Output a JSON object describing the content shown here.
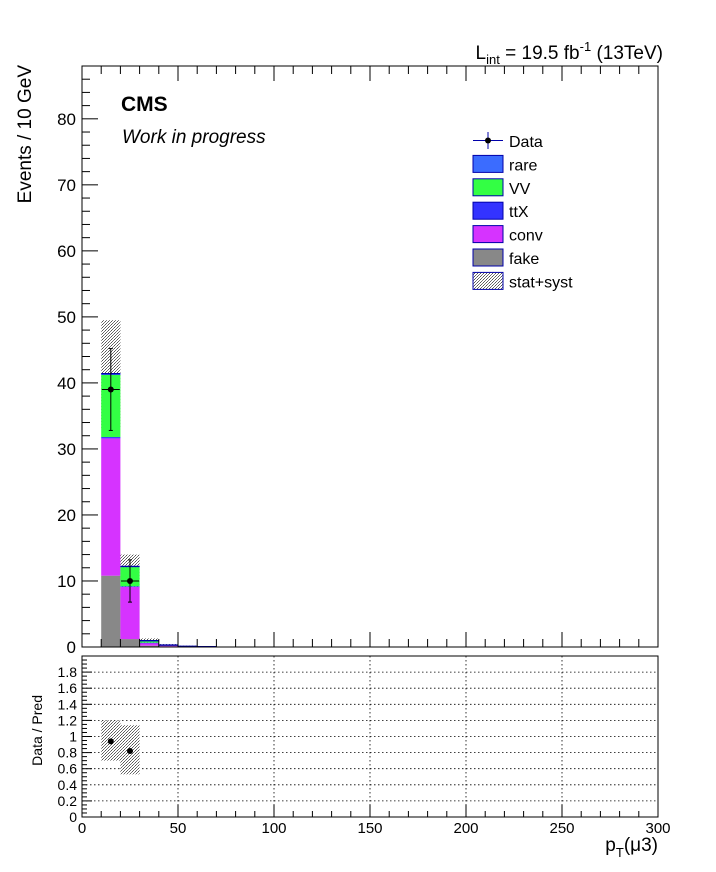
{
  "colors": {
    "rare": "#3b6cff",
    "VV": "#33ff44",
    "ttX": "#3333ff",
    "conv": "#d633ff",
    "fake": "#888888",
    "band": "#b0b0b0",
    "data": "#000000",
    "frame": "#000000",
    "legend_line": "#0000aa"
  },
  "chart_data": [
    {
      "type": "bar",
      "stacked": true,
      "title": "",
      "lumi_label": {
        "prefix": "L",
        "sub": "int",
        "mid": " = 19.5 fb",
        "sup": "-1",
        "suffix": " (13TeV)"
      },
      "cms_label": "CMS",
      "status_label": "Work in progress",
      "ylabel": "Events / 10 GeV",
      "ylim": [
        0,
        88
      ],
      "yticks": [
        0,
        10,
        20,
        30,
        40,
        50,
        60,
        70,
        80
      ],
      "xlim": [
        0,
        300
      ],
      "bin_width": 10,
      "bins_low": [
        10,
        20,
        30,
        40,
        50,
        60
      ],
      "stack_order": [
        "fake",
        "conv",
        "ttX",
        "VV",
        "rare"
      ],
      "series": [
        {
          "name": "fake",
          "values": [
            10.8,
            1.2,
            0.2,
            0.1,
            0.0,
            0.0
          ]
        },
        {
          "name": "conv",
          "values": [
            20.8,
            7.9,
            0.4,
            0.15,
            0.1,
            0.05
          ]
        },
        {
          "name": "ttX",
          "values": [
            0.2,
            0.1,
            0.05,
            0.0,
            0.0,
            0.0
          ]
        },
        {
          "name": "VV",
          "values": [
            9.4,
            2.9,
            0.25,
            0.05,
            0.0,
            0.0
          ]
        },
        {
          "name": "rare",
          "values": [
            0.2,
            0.1,
            0.05,
            0.0,
            0.0,
            0.0
          ]
        }
      ],
      "uncertainty_band": {
        "name": "stat+syst",
        "low": [
          33.0,
          9.0,
          0.6,
          0.2,
          0.05,
          0.02
        ],
        "high": [
          49.5,
          14.0,
          1.3,
          0.45,
          0.2,
          0.1
        ]
      },
      "data_points": {
        "name": "Data",
        "x": [
          15,
          25
        ],
        "y": [
          39,
          10
        ],
        "err_low": [
          6.2,
          3.2
        ],
        "err_high": [
          6.2,
          3.2
        ]
      },
      "legend": {
        "placement": "top-right",
        "entries": [
          {
            "key": "Data",
            "label": "Data",
            "style": "marker"
          },
          {
            "key": "rare",
            "label": "rare",
            "style": "fill"
          },
          {
            "key": "VV",
            "label": "VV",
            "style": "fill"
          },
          {
            "key": "ttX",
            "label": "ttX",
            "style": "fill"
          },
          {
            "key": "conv",
            "label": "conv",
            "style": "fill"
          },
          {
            "key": "fake",
            "label": "fake",
            "style": "fill"
          },
          {
            "key": "band",
            "label": "stat+syst",
            "style": "hatch"
          }
        ]
      }
    },
    {
      "type": "scatter",
      "title": "",
      "ylabel": "Data / Pred",
      "xlabel": {
        "base": "p",
        "sub": "T",
        "rest": "(μ3)"
      },
      "ylim": [
        0,
        2
      ],
      "yticks": [
        0,
        0.2,
        0.4,
        0.6,
        0.8,
        1,
        1.2,
        1.4,
        1.6,
        1.8
      ],
      "ytick_labels": [
        "0",
        "0.2",
        "0.4",
        "0.6",
        "0.8",
        "1",
        "1.2",
        "1.4",
        "1.6",
        "1.8"
      ],
      "xlim": [
        0,
        300
      ],
      "xticks": [
        0,
        50,
        100,
        150,
        200,
        250,
        300
      ],
      "grid": true,
      "ratio_band": {
        "bins_low": [
          10,
          20
        ],
        "low": [
          0.7,
          0.53
        ],
        "high": [
          1.2,
          1.14
        ]
      },
      "points": {
        "x": [
          15,
          25
        ],
        "y": [
          0.94,
          0.82
        ]
      }
    }
  ]
}
